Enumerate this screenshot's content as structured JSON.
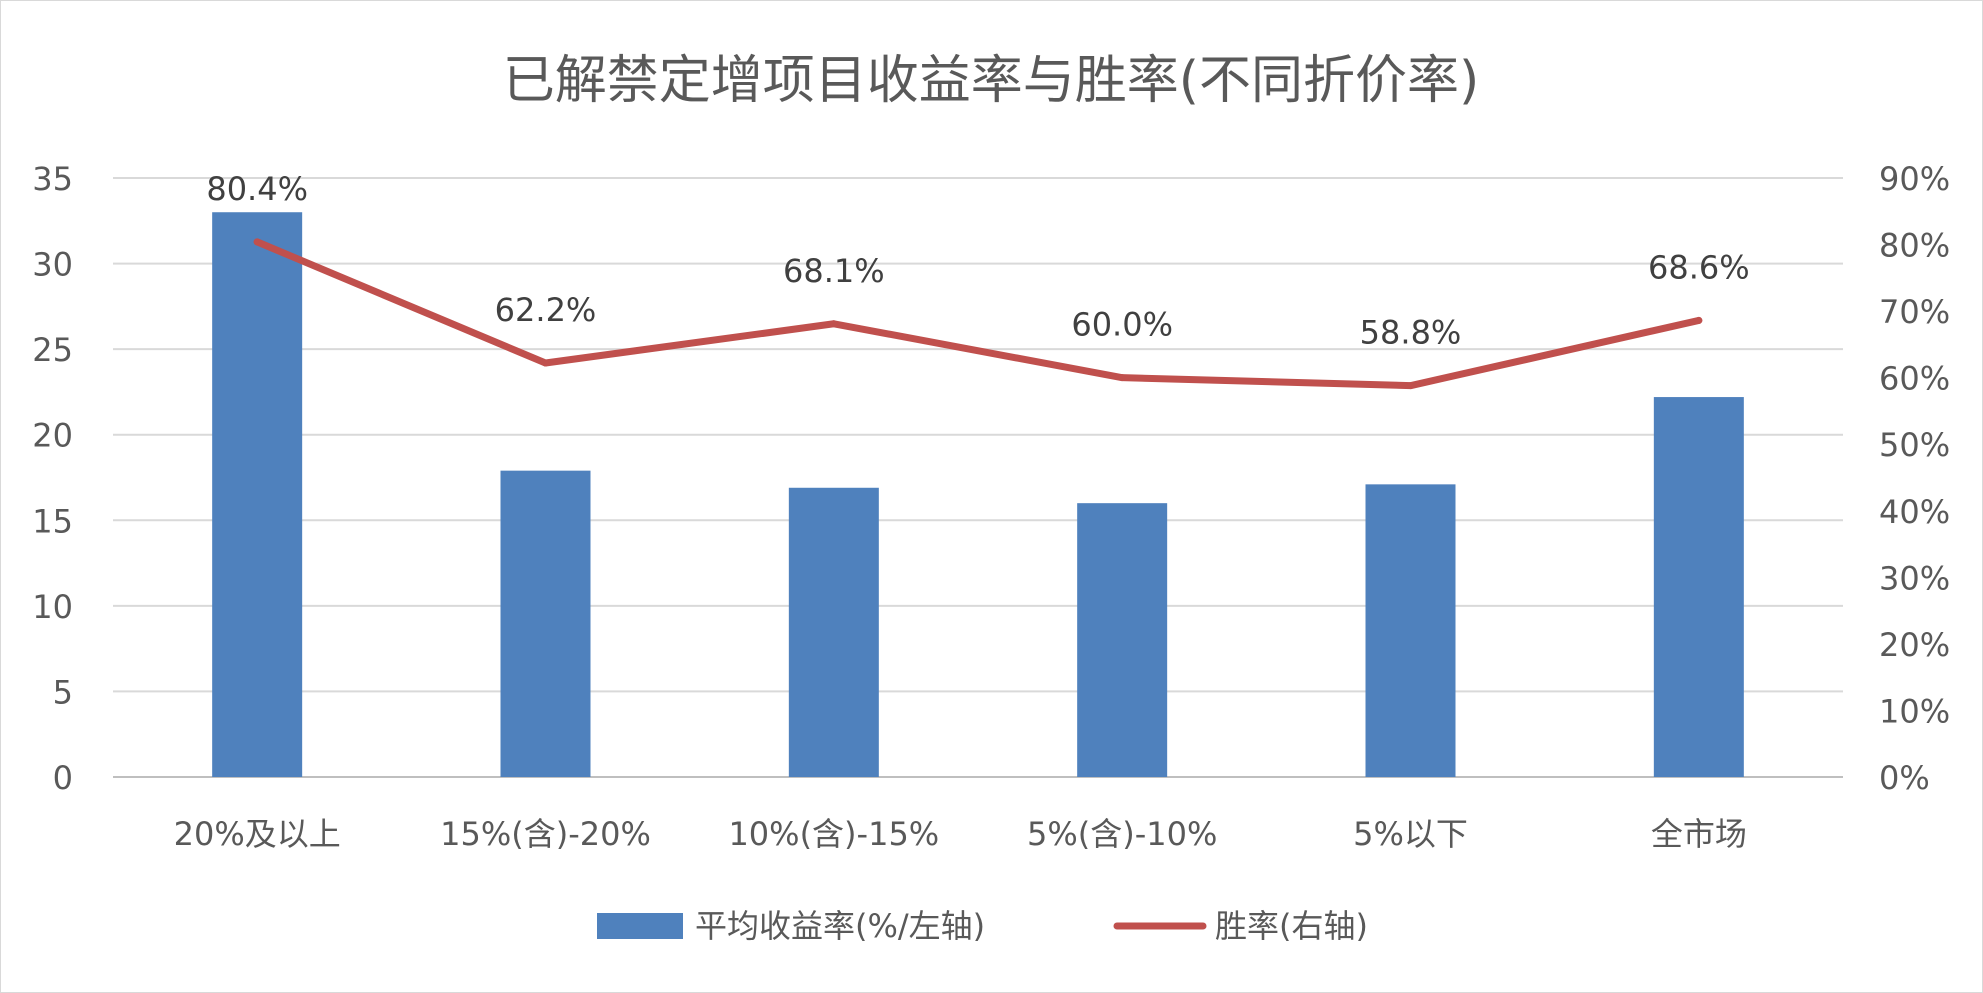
{
  "chart_data": {
    "type": "bar",
    "title": "已解禁定增项目收益率与胜率(不同折价率)",
    "categories": [
      "20%及以上",
      "15%(含)-20%",
      "10%(含)-15%",
      "5%(含)-10%",
      "5%以下",
      "全市场"
    ],
    "y_left": {
      "ylim": [
        0,
        35
      ],
      "ticks": [
        "0",
        "5",
        "10",
        "15",
        "20",
        "25",
        "30",
        "35"
      ]
    },
    "y_right": {
      "ylim": [
        0,
        0.9
      ],
      "ticks": [
        "0%",
        "10%",
        "20%",
        "30%",
        "40%",
        "50%",
        "60%",
        "70%",
        "80%",
        "90%"
      ]
    },
    "series": [
      {
        "name": "平均收益率(%/左轴)",
        "type": "bar",
        "axis": "left",
        "color": "#4f81bd",
        "values": [
          33.0,
          17.9,
          16.9,
          16.0,
          17.1,
          22.2
        ]
      },
      {
        "name": "胜率(右轴)",
        "type": "line",
        "axis": "right",
        "color": "#c0504d",
        "values": [
          0.804,
          0.622,
          0.681,
          0.6,
          0.588,
          0.686
        ],
        "labels": [
          "80.4%",
          "62.2%",
          "68.1%",
          "60.0%",
          "58.8%",
          "68.6%"
        ]
      }
    ],
    "grid": true,
    "legend_position": "bottom"
  }
}
